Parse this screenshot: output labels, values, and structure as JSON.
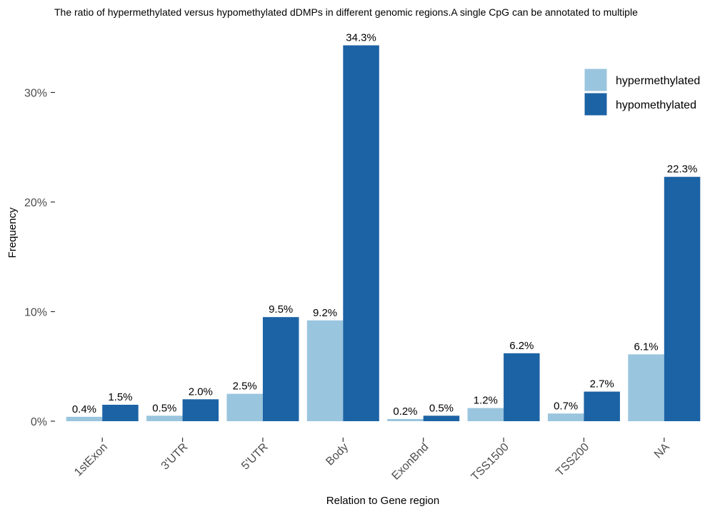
{
  "chart_data": {
    "type": "bar",
    "title": "The ratio of hypermethylated versus hypomethylated dDMPs in different genomic regions.A single CpG can be annotated to multiple",
    "xlabel": "Relation to Gene region",
    "ylabel": "Frequency",
    "categories": [
      "1stExon",
      "3'UTR",
      "5'UTR",
      "Body",
      "ExonBnd",
      "TSS1500",
      "TSS200",
      "NA"
    ],
    "series": [
      {
        "name": "hypermethylated",
        "color": "#9ac5de",
        "values": [
          0.4,
          0.5,
          2.5,
          9.2,
          0.2,
          1.2,
          0.7,
          6.1
        ],
        "labels": [
          "0.4%",
          "0.5%",
          "2.5%",
          "9.2%",
          "0.2%",
          "1.2%",
          "0.7%",
          "6.1%"
        ]
      },
      {
        "name": "hypomethylated",
        "color": "#1c63a5",
        "values": [
          1.5,
          2.0,
          9.5,
          34.3,
          0.5,
          6.2,
          2.7,
          22.3
        ],
        "labels": [
          "1.5%",
          "2.0%",
          "9.5%",
          "34.3%",
          "0.5%",
          "6.2%",
          "2.7%",
          "22.3%"
        ]
      }
    ],
    "yticks": [
      0,
      10,
      20,
      30
    ],
    "ytick_labels": [
      "0%",
      "10%",
      "20%",
      "30%"
    ],
    "ylim": [
      0,
      35
    ],
    "grid": false,
    "legend_position": "top-right"
  }
}
